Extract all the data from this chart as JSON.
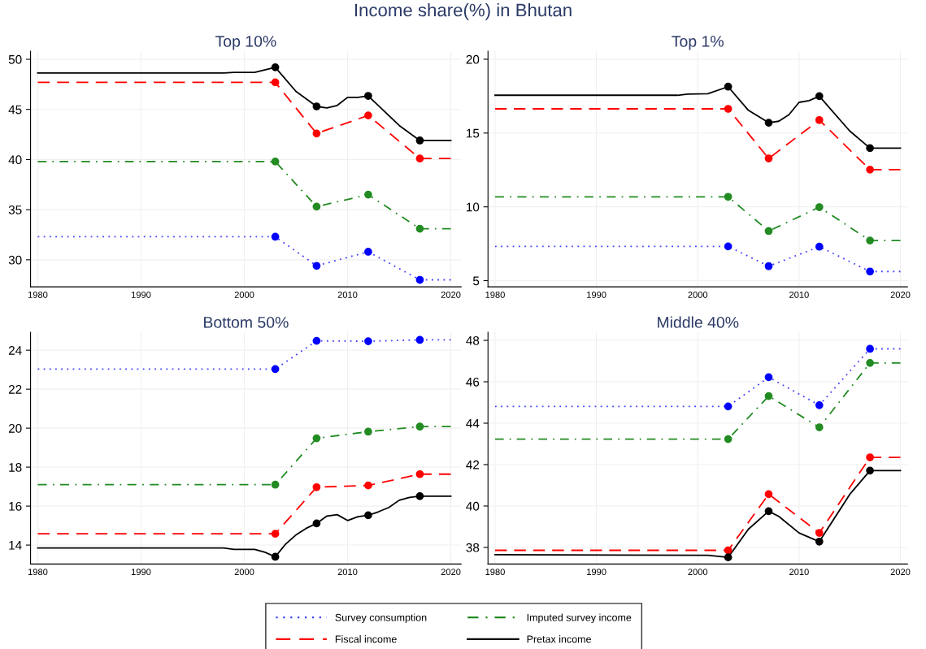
{
  "chart_data": [
    {
      "type": "line",
      "title": "Top 10%",
      "legend": "bottom",
      "annotations": [
        "Income share(%) in Bhutan"
      ],
      "xlim": [
        1979.3,
        2021
      ],
      "xticks": [
        1980,
        1990,
        2000,
        2010,
        2020
      ],
      "ylim": [
        27.3,
        50.8
      ],
      "yticks": [
        30,
        35,
        40,
        45,
        50
      ],
      "grid": true,
      "series": [
        {
          "name": "Survey consumption",
          "color": "#4040ff",
          "line_style": "dotted",
          "marker": "none",
          "x": [
            1980,
            2003,
            2007,
            2012,
            2017,
            2020
          ],
          "values": [
            32.3,
            32.3,
            29.4,
            30.8,
            28.0,
            28.0
          ]
        },
        {
          "name": "Fiscal income",
          "color": "#ff0000",
          "line_style": "dashed",
          "marker": "none",
          "x": [
            1980,
            2003,
            2007,
            2012,
            2017,
            2020
          ],
          "values": [
            47.7,
            47.7,
            42.6,
            44.4,
            40.1,
            40.1
          ]
        },
        {
          "name": "Imputed survey income",
          "color": "#228b22",
          "line_style": "dashdot",
          "marker": "none",
          "x": [
            1980,
            2003,
            2007,
            2012,
            2017,
            2020
          ],
          "values": [
            39.8,
            39.8,
            35.3,
            36.5,
            33.1,
            33.1
          ]
        },
        {
          "name": "Pretax income",
          "color": "#000000",
          "line_style": "solid",
          "marker": "none",
          "x": [
            1980,
            1998,
            1999,
            2001,
            2003,
            2005,
            2007,
            2008,
            2009,
            2010,
            2011,
            2012,
            2015,
            2017,
            2020
          ],
          "values": [
            48.64,
            48.64,
            48.7,
            48.7,
            49.2,
            46.8,
            45.3,
            45.15,
            45.4,
            46.2,
            46.2,
            46.35,
            43.4,
            41.9,
            41.9
          ]
        },
        {
          "type": "scatter",
          "color": "#0000ff",
          "marker": "circle",
          "x": [
            2003,
            2007,
            2012,
            2017
          ],
          "values": [
            32.3,
            29.4,
            30.8,
            28.0
          ]
        },
        {
          "type": "scatter",
          "color": "#228b22",
          "marker": "circle",
          "x": [
            2003,
            2007,
            2012,
            2017
          ],
          "values": [
            39.8,
            35.3,
            36.5,
            33.1
          ]
        },
        {
          "type": "scatter",
          "color": "#ff0000",
          "marker": "circle",
          "x": [
            2003,
            2007,
            2012,
            2017
          ],
          "values": [
            47.7,
            42.6,
            44.4,
            40.1
          ]
        },
        {
          "type": "scatter",
          "color": "#000000",
          "marker": "circle",
          "x": [
            2003,
            2007,
            2012,
            2017
          ],
          "values": [
            49.2,
            45.3,
            46.35,
            41.9
          ]
        }
      ]
    },
    {
      "type": "line",
      "title": "Top 1%",
      "xlim": [
        1979.3,
        2020.7
      ],
      "xticks": [
        1980,
        1990,
        2000,
        2010,
        2020
      ],
      "ylim": [
        4.58,
        20.54
      ],
      "yticks": [
        5,
        10,
        15,
        20
      ],
      "grid": true,
      "series": [
        {
          "color": "#4040ff",
          "line_style": "dotted",
          "marker": "none",
          "x": [
            1980,
            2003,
            2007,
            2012,
            2017,
            2020
          ],
          "values": [
            7.32,
            7.32,
            5.98,
            7.3,
            5.62,
            5.62
          ]
        },
        {
          "color": "#228b22",
          "line_style": "dashdot",
          "marker": "none",
          "x": [
            1980,
            2003,
            2007,
            2012,
            2017,
            2020
          ],
          "values": [
            10.68,
            10.68,
            8.36,
            9.98,
            7.72,
            7.72
          ]
        },
        {
          "color": "#ff0000",
          "line_style": "dashed",
          "marker": "none",
          "x": [
            1980,
            2003,
            2007,
            2012,
            2017,
            2020
          ],
          "values": [
            16.64,
            16.64,
            13.28,
            15.88,
            12.52,
            12.52
          ]
        },
        {
          "color": "#000000",
          "line_style": "solid",
          "marker": "none",
          "x": [
            1980,
            1998,
            1999,
            2001,
            2003,
            2005,
            2007,
            2008,
            2009,
            2010,
            2011,
            2012,
            2015,
            2017,
            2020
          ],
          "values": [
            17.56,
            17.56,
            17.64,
            17.66,
            18.14,
            16.54,
            15.7,
            15.8,
            16.24,
            17.08,
            17.2,
            17.5,
            15.14,
            13.98,
            13.98
          ]
        },
        {
          "type": "scatter",
          "color": "#0000ff",
          "marker": "circle",
          "x": [
            2003,
            2007,
            2012,
            2017
          ],
          "values": [
            7.32,
            5.98,
            7.3,
            5.62
          ]
        },
        {
          "type": "scatter",
          "color": "#228b22",
          "marker": "circle",
          "x": [
            2003,
            2007,
            2012,
            2017
          ],
          "values": [
            10.68,
            8.36,
            9.98,
            7.72
          ]
        },
        {
          "type": "scatter",
          "color": "#ff0000",
          "marker": "circle",
          "x": [
            2003,
            2007,
            2012,
            2017
          ],
          "values": [
            16.64,
            13.28,
            15.88,
            12.52
          ]
        },
        {
          "type": "scatter",
          "color": "#000000",
          "marker": "circle",
          "x": [
            2003,
            2007,
            2012,
            2017
          ],
          "values": [
            18.14,
            15.7,
            17.5,
            13.98
          ]
        }
      ]
    },
    {
      "type": "line",
      "title": "Bottom 50%",
      "xlim": [
        1979.3,
        2021
      ],
      "xticks": [
        1980,
        1990,
        2000,
        2010,
        2020
      ],
      "ylim": [
        13.03,
        24.92
      ],
      "yticks": [
        14,
        16,
        18,
        20,
        22,
        24
      ],
      "grid": true,
      "series": [
        {
          "color": "#4040ff",
          "line_style": "dotted",
          "marker": "none",
          "x": [
            1980,
            2003,
            2007,
            2012,
            2017,
            2020
          ],
          "values": [
            23.03,
            23.03,
            24.48,
            24.46,
            24.53,
            24.53
          ]
        },
        {
          "color": "#228b22",
          "line_style": "dashdot",
          "marker": "none",
          "x": [
            1980,
            2003,
            2007,
            2012,
            2017,
            2020
          ],
          "values": [
            17.1,
            17.1,
            19.48,
            19.82,
            20.08,
            20.08
          ]
        },
        {
          "color": "#ff0000",
          "line_style": "dashed",
          "marker": "none",
          "x": [
            1980,
            2003,
            2007,
            2012,
            2017,
            2020
          ],
          "values": [
            14.58,
            14.58,
            16.97,
            17.06,
            17.64,
            17.64
          ]
        },
        {
          "color": "#000000",
          "line_style": "solid",
          "marker": "none",
          "x": [
            1980,
            1998,
            1999,
            2001,
            2002,
            2003,
            2004,
            2005,
            2006,
            2007,
            2008,
            2009,
            2010,
            2011,
            2012,
            2013,
            2014,
            2015,
            2016,
            2017,
            2020
          ],
          "values": [
            13.85,
            13.85,
            13.78,
            13.78,
            13.63,
            13.4,
            14.05,
            14.52,
            14.86,
            15.11,
            15.49,
            15.56,
            15.26,
            15.46,
            15.53,
            15.71,
            15.93,
            16.3,
            16.45,
            16.51,
            16.51
          ]
        },
        {
          "type": "scatter",
          "color": "#0000ff",
          "marker": "circle",
          "x": [
            2003,
            2007,
            2012,
            2017
          ],
          "values": [
            23.03,
            24.48,
            24.46,
            24.53
          ]
        },
        {
          "type": "scatter",
          "color": "#228b22",
          "marker": "circle",
          "x": [
            2003,
            2007,
            2012,
            2017
          ],
          "values": [
            17.1,
            19.48,
            19.82,
            20.08
          ]
        },
        {
          "type": "scatter",
          "color": "#ff0000",
          "marker": "circle",
          "x": [
            2003,
            2007,
            2012,
            2017
          ],
          "values": [
            14.58,
            16.97,
            17.06,
            17.64
          ]
        },
        {
          "type": "scatter",
          "color": "#000000",
          "marker": "circle",
          "x": [
            2003,
            2007,
            2012,
            2017
          ],
          "values": [
            13.4,
            15.11,
            15.53,
            16.51
          ]
        }
      ]
    },
    {
      "type": "line",
      "title": "Middle 40%",
      "xlim": [
        1979.3,
        2020.7
      ],
      "xticks": [
        1980,
        1990,
        2000,
        2010,
        2020
      ],
      "ylim": [
        37.2,
        48.39
      ],
      "yticks": [
        38,
        40,
        42,
        44,
        46,
        48
      ],
      "grid": true,
      "series": [
        {
          "color": "#4040ff",
          "line_style": "dotted",
          "marker": "none",
          "x": [
            1980,
            2003,
            2007,
            2012,
            2017,
            2020
          ],
          "values": [
            44.81,
            44.81,
            46.22,
            44.87,
            47.59,
            47.59
          ]
        },
        {
          "color": "#228b22",
          "line_style": "dashdot",
          "marker": "none",
          "x": [
            1980,
            2003,
            2007,
            2012,
            2017,
            2020
          ],
          "values": [
            43.23,
            43.23,
            45.31,
            43.8,
            46.91,
            46.91
          ]
        },
        {
          "color": "#ff0000",
          "line_style": "dashed",
          "marker": "none",
          "x": [
            1980,
            2003,
            2007,
            2012,
            2017,
            2020
          ],
          "values": [
            37.86,
            37.86,
            40.57,
            38.7,
            42.35,
            42.35
          ]
        },
        {
          "color": "#000000",
          "line_style": "solid",
          "marker": "none",
          "x": [
            1980,
            2001,
            2003,
            2005,
            2007,
            2008,
            2010,
            2012,
            2015,
            2017,
            2020
          ],
          "values": [
            37.65,
            37.62,
            37.52,
            38.88,
            39.75,
            39.5,
            38.7,
            38.28,
            40.56,
            41.71,
            41.71
          ]
        },
        {
          "type": "scatter",
          "color": "#0000ff",
          "marker": "circle",
          "x": [
            2003,
            2007,
            2012,
            2017
          ],
          "values": [
            44.81,
            46.22,
            44.87,
            47.59
          ]
        },
        {
          "type": "scatter",
          "color": "#228b22",
          "marker": "circle",
          "x": [
            2003,
            2007,
            2012,
            2017
          ],
          "values": [
            43.23,
            45.31,
            43.8,
            46.91
          ]
        },
        {
          "type": "scatter",
          "color": "#ff0000",
          "marker": "circle",
          "x": [
            2003,
            2007,
            2012,
            2017
          ],
          "values": [
            37.86,
            40.57,
            38.7,
            42.35
          ]
        },
        {
          "type": "scatter",
          "color": "#000000",
          "marker": "circle",
          "x": [
            2003,
            2007,
            2012,
            2017
          ],
          "values": [
            37.52,
            39.75,
            38.28,
            41.71
          ]
        }
      ]
    }
  ]
}
